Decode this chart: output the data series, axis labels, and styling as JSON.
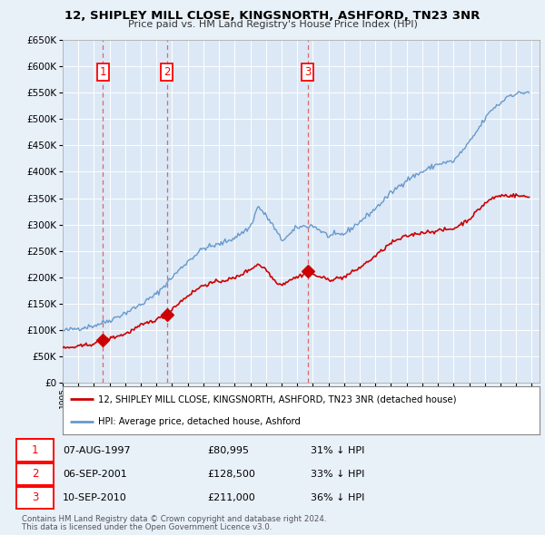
{
  "title": "12, SHIPLEY MILL CLOSE, KINGSNORTH, ASHFORD, TN23 3NR",
  "subtitle": "Price paid vs. HM Land Registry's House Price Index (HPI)",
  "sale_labels": [
    "07-AUG-1997",
    "06-SEP-2001",
    "10-SEP-2010"
  ],
  "sale_prices": [
    80995,
    128500,
    211000
  ],
  "sale_pct": [
    "31% ↓ HPI",
    "33% ↓ HPI",
    "36% ↓ HPI"
  ],
  "legend_property": "12, SHIPLEY MILL CLOSE, KINGSNORTH, ASHFORD, TN23 3NR (detached house)",
  "legend_hpi": "HPI: Average price, detached house, Ashford",
  "footer1": "Contains HM Land Registry data © Crown copyright and database right 2024.",
  "footer2": "This data is licensed under the Open Government Licence v3.0.",
  "ylim": [
    0,
    650000
  ],
  "yticks": [
    0,
    50000,
    100000,
    150000,
    200000,
    250000,
    300000,
    350000,
    400000,
    450000,
    500000,
    550000,
    600000,
    650000
  ],
  "property_color": "#cc0000",
  "hpi_color": "#6699cc",
  "vline_color": "#dd6666",
  "bg_color": "#e8f0f8",
  "plot_bg": "#dce8f5",
  "hpi_anchors_t": [
    1995.0,
    1996.0,
    1997.0,
    1998.0,
    1999.0,
    2000.0,
    2001.0,
    2002.0,
    2003.0,
    2004.0,
    2005.0,
    2006.0,
    2007.0,
    2007.5,
    2008.3,
    2009.0,
    2009.5,
    2010.0,
    2011.0,
    2012.0,
    2013.0,
    2014.0,
    2015.0,
    2016.0,
    2017.0,
    2018.0,
    2019.0,
    2020.0,
    2021.0,
    2022.0,
    2022.5,
    2023.0,
    2023.5,
    2024.0,
    2024.83
  ],
  "hpi_anchors_v": [
    98000,
    103000,
    108000,
    118000,
    132000,
    148000,
    168000,
    200000,
    230000,
    255000,
    262000,
    275000,
    295000,
    335000,
    305000,
    270000,
    280000,
    295000,
    298000,
    278000,
    282000,
    305000,
    330000,
    360000,
    385000,
    400000,
    415000,
    420000,
    455000,
    500000,
    520000,
    530000,
    545000,
    548000,
    552000
  ],
  "prop_anchors_t": [
    1995.0,
    1996.0,
    1997.0,
    1997.6,
    1998.0,
    1999.0,
    2000.0,
    2001.0,
    2001.75,
    2002.0,
    2003.0,
    2004.0,
    2005.0,
    2006.0,
    2007.0,
    2007.5,
    2008.0,
    2008.5,
    2009.0,
    2009.5,
    2010.0,
    2010.75,
    2011.0,
    2012.0,
    2013.0,
    2014.0,
    2015.0,
    2016.0,
    2017.0,
    2018.0,
    2019.0,
    2020.0,
    2021.0,
    2022.0,
    2022.5,
    2023.0,
    2024.0,
    2024.83
  ],
  "prop_anchors_v": [
    65000,
    68000,
    74000,
    80995,
    84000,
    92000,
    108000,
    120000,
    128500,
    140000,
    165000,
    185000,
    192000,
    198000,
    215000,
    225000,
    215000,
    195000,
    185000,
    195000,
    200000,
    211000,
    205000,
    195000,
    200000,
    218000,
    240000,
    265000,
    278000,
    285000,
    288000,
    292000,
    310000,
    340000,
    350000,
    355000,
    355000,
    352000
  ]
}
